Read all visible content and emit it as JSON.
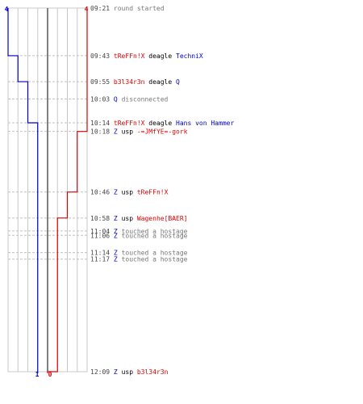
{
  "colors": {
    "team_blue": "#0000cc",
    "team_red": "#dd0000",
    "grid": "#c8c8c8",
    "center": "#808080",
    "dash": "#c0c0c0",
    "time": "#444444",
    "verb": "#000000",
    "system": "#777777"
  },
  "score": {
    "blue_start": "4",
    "red_start": "4",
    "blue_end": "1",
    "red_end": "0"
  },
  "players": {
    "blue_start": 4,
    "red_start": 4
  },
  "events": [
    {
      "time": "09:21",
      "type": "system",
      "text": "round started"
    },
    {
      "time": "09:43",
      "type": "kill",
      "killer": "tReFFn!X",
      "killer_team": "red",
      "weapon": "deagle",
      "victim": "TechniX",
      "victim_team": "blue"
    },
    {
      "time": "09:55",
      "type": "kill",
      "killer": "b3l34r3n",
      "killer_team": "red",
      "weapon": "deagle",
      "victim": "Q",
      "victim_team": "blue"
    },
    {
      "time": "10:03",
      "type": "player_system",
      "player": "Q",
      "player_team": "blue",
      "text": "disconnected"
    },
    {
      "time": "10:14",
      "type": "kill",
      "killer": "tReFFn!X",
      "killer_team": "red",
      "weapon": "deagle",
      "victim": "Hans von Hammer",
      "victim_team": "blue"
    },
    {
      "time": "10:18",
      "type": "kill",
      "killer": "Z",
      "killer_team": "blue",
      "weapon": "usp",
      "victim": "-=JMfYE=-gork",
      "victim_team": "red"
    },
    {
      "time": "10:46",
      "type": "kill",
      "killer": "Z",
      "killer_team": "blue",
      "weapon": "usp",
      "victim": "tReFFn!X",
      "victim_team": "red"
    },
    {
      "time": "10:58",
      "type": "kill",
      "killer": "Z",
      "killer_team": "blue",
      "weapon": "usp",
      "victim": "Wagenhe[BAER]",
      "victim_team": "red"
    },
    {
      "time": "11:04",
      "type": "player_system",
      "player": "Z",
      "player_team": "blue",
      "text": "touched a hostage"
    },
    {
      "time": "11:06",
      "type": "player_system",
      "player": "Z",
      "player_team": "blue",
      "text": "touched a hostage"
    },
    {
      "time": "11:14",
      "type": "player_system",
      "player": "Z",
      "player_team": "blue",
      "text": "touched a hostage"
    },
    {
      "time": "11:17",
      "type": "player_system",
      "player": "Z",
      "player_team": "blue",
      "text": "touched a hostage"
    },
    {
      "time": "12:09",
      "type": "kill",
      "killer": "Z",
      "killer_team": "blue",
      "weapon": "usp",
      "victim": "b3l34r3n",
      "victim_team": "red"
    }
  ]
}
